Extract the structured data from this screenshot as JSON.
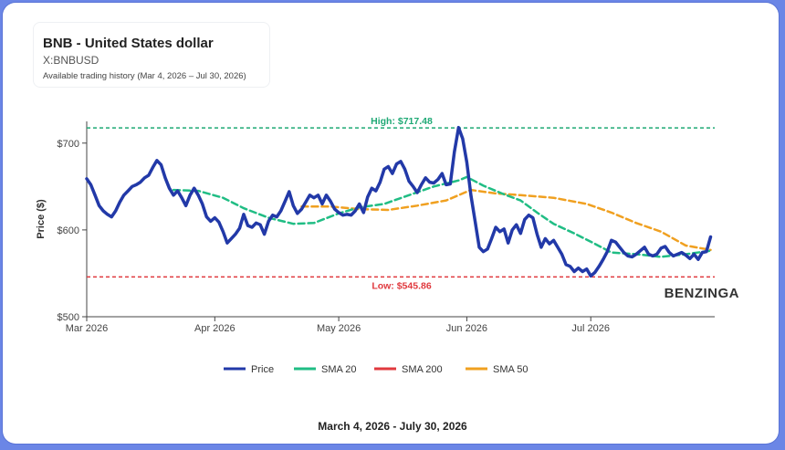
{
  "header": {
    "title": "BNB - United States dollar",
    "symbol": "X:BNBUSD",
    "range_note": "Available trading history (Mar 4, 2026 – Jul 30, 2026)"
  },
  "footer": {
    "date_range": "March 4, 2026 - July 30, 2026"
  },
  "watermark": "BENZINGA",
  "colors": {
    "price": "#2239a8",
    "sma20": "#20bd84",
    "sma200": "#e0393e",
    "sma50": "#f0a020",
    "high": "#1fa975",
    "low": "#e0393e"
  },
  "chart_data": {
    "type": "line",
    "ylabel": "Price ($)",
    "xlabel": "",
    "x_range": [
      "2026-03-01",
      "2026-07-31"
    ],
    "ylim": [
      500,
      725
    ],
    "y_ticks": [
      500,
      600,
      700
    ],
    "y_tick_labels": [
      "$500",
      "$600",
      "$700"
    ],
    "x_ticks": [
      "2026-03-01",
      "2026-04-01",
      "2026-05-01",
      "2026-06-01",
      "2026-07-01"
    ],
    "x_tick_labels": [
      "Mar 2026",
      "Apr 2026",
      "May 2026",
      "Jun 2026",
      "Jul 2026"
    ],
    "annotations": [
      {
        "name": "high",
        "label": "High: $717.48",
        "value": 717.48
      },
      {
        "name": "low",
        "label": "Low: $545.86",
        "value": 545.86
      }
    ],
    "legend_placement": "bottom",
    "legend": [
      "Price",
      "SMA 20",
      "SMA 200",
      "SMA 50"
    ],
    "series": [
      {
        "name": "Price",
        "points": [
          [
            "2026-03-01",
            659
          ],
          [
            "2026-03-02",
            652
          ],
          [
            "2026-03-03",
            640
          ],
          [
            "2026-03-04",
            628
          ],
          [
            "2026-03-05",
            622
          ],
          [
            "2026-03-06",
            618
          ],
          [
            "2026-03-07",
            615
          ],
          [
            "2026-03-08",
            622
          ],
          [
            "2026-03-09",
            632
          ],
          [
            "2026-03-10",
            640
          ],
          [
            "2026-03-11",
            645
          ],
          [
            "2026-03-12",
            650
          ],
          [
            "2026-03-13",
            652
          ],
          [
            "2026-03-14",
            655
          ],
          [
            "2026-03-15",
            660
          ],
          [
            "2026-03-16",
            663
          ],
          [
            "2026-03-17",
            672
          ],
          [
            "2026-03-18",
            680
          ],
          [
            "2026-03-19",
            675
          ],
          [
            "2026-03-20",
            660
          ],
          [
            "2026-03-21",
            648
          ],
          [
            "2026-03-22",
            640
          ],
          [
            "2026-03-23",
            645
          ],
          [
            "2026-03-24",
            637
          ],
          [
            "2026-03-25",
            628
          ],
          [
            "2026-03-26",
            640
          ],
          [
            "2026-03-27",
            648
          ],
          [
            "2026-03-28",
            640
          ],
          [
            "2026-03-29",
            630
          ],
          [
            "2026-03-30",
            615
          ],
          [
            "2026-03-31",
            610
          ],
          [
            "2026-04-01",
            614
          ],
          [
            "2026-04-02",
            609
          ],
          [
            "2026-04-03",
            598
          ],
          [
            "2026-04-04",
            585
          ],
          [
            "2026-04-05",
            590
          ],
          [
            "2026-04-06",
            595
          ],
          [
            "2026-04-07",
            602
          ],
          [
            "2026-04-08",
            618
          ],
          [
            "2026-04-09",
            605
          ],
          [
            "2026-04-10",
            603
          ],
          [
            "2026-04-11",
            608
          ],
          [
            "2026-04-12",
            606
          ],
          [
            "2026-04-13",
            595
          ],
          [
            "2026-04-14",
            610
          ],
          [
            "2026-04-15",
            617
          ],
          [
            "2026-04-16",
            615
          ],
          [
            "2026-04-17",
            622
          ],
          [
            "2026-04-18",
            633
          ],
          [
            "2026-04-19",
            644
          ],
          [
            "2026-04-20",
            628
          ],
          [
            "2026-04-21",
            619
          ],
          [
            "2026-04-22",
            624
          ],
          [
            "2026-04-23",
            632
          ],
          [
            "2026-04-24",
            640
          ],
          [
            "2026-04-25",
            637
          ],
          [
            "2026-04-26",
            640
          ],
          [
            "2026-04-27",
            630
          ],
          [
            "2026-04-28",
            640
          ],
          [
            "2026-04-29",
            633
          ],
          [
            "2026-04-30",
            624
          ],
          [
            "2026-05-01",
            620
          ],
          [
            "2026-05-02",
            617
          ],
          [
            "2026-05-03",
            618
          ],
          [
            "2026-05-04",
            617
          ],
          [
            "2026-05-05",
            622
          ],
          [
            "2026-05-06",
            630
          ],
          [
            "2026-05-07",
            620
          ],
          [
            "2026-05-08",
            638
          ],
          [
            "2026-05-09",
            648
          ],
          [
            "2026-05-10",
            645
          ],
          [
            "2026-05-11",
            655
          ],
          [
            "2026-05-12",
            670
          ],
          [
            "2026-05-13",
            673
          ],
          [
            "2026-05-14",
            665
          ],
          [
            "2026-05-15",
            676
          ],
          [
            "2026-05-16",
            679
          ],
          [
            "2026-05-17",
            670
          ],
          [
            "2026-05-18",
            656
          ],
          [
            "2026-05-19",
            650
          ],
          [
            "2026-05-20",
            643
          ],
          [
            "2026-05-21",
            652
          ],
          [
            "2026-05-22",
            660
          ],
          [
            "2026-05-23",
            655
          ],
          [
            "2026-05-24",
            654
          ],
          [
            "2026-05-25",
            658
          ],
          [
            "2026-05-26",
            665
          ],
          [
            "2026-05-27",
            652
          ],
          [
            "2026-05-28",
            653
          ],
          [
            "2026-05-29",
            690
          ],
          [
            "2026-05-30",
            718
          ],
          [
            "2026-05-31",
            705
          ],
          [
            "2026-06-01",
            678
          ],
          [
            "2026-06-02",
            640
          ],
          [
            "2026-06-03",
            610
          ],
          [
            "2026-06-04",
            580
          ],
          [
            "2026-06-05",
            575
          ],
          [
            "2026-06-06",
            578
          ],
          [
            "2026-06-07",
            590
          ],
          [
            "2026-06-08",
            603
          ],
          [
            "2026-06-09",
            598
          ],
          [
            "2026-06-10",
            601
          ],
          [
            "2026-06-11",
            585
          ],
          [
            "2026-06-12",
            600
          ],
          [
            "2026-06-13",
            606
          ],
          [
            "2026-06-14",
            596
          ],
          [
            "2026-06-15",
            612
          ],
          [
            "2026-06-16",
            617
          ],
          [
            "2026-06-17",
            614
          ],
          [
            "2026-06-18",
            595
          ],
          [
            "2026-06-19",
            580
          ],
          [
            "2026-06-20",
            590
          ],
          [
            "2026-06-21",
            584
          ],
          [
            "2026-06-22",
            588
          ],
          [
            "2026-06-23",
            580
          ],
          [
            "2026-06-24",
            572
          ],
          [
            "2026-06-25",
            560
          ],
          [
            "2026-06-26",
            558
          ],
          [
            "2026-06-27",
            552
          ],
          [
            "2026-06-28",
            556
          ],
          [
            "2026-06-29",
            552
          ],
          [
            "2026-06-30",
            555
          ],
          [
            "2026-07-01",
            547
          ],
          [
            "2026-07-02",
            551
          ],
          [
            "2026-07-03",
            558
          ],
          [
            "2026-07-04",
            566
          ],
          [
            "2026-07-05",
            575
          ],
          [
            "2026-07-06",
            588
          ],
          [
            "2026-07-07",
            586
          ],
          [
            "2026-07-08",
            580
          ],
          [
            "2026-07-09",
            574
          ],
          [
            "2026-07-10",
            570
          ],
          [
            "2026-07-11",
            569
          ],
          [
            "2026-07-12",
            572
          ],
          [
            "2026-07-13",
            576
          ],
          [
            "2026-07-14",
            580
          ],
          [
            "2026-07-15",
            572
          ],
          [
            "2026-07-16",
            570
          ],
          [
            "2026-07-17",
            572
          ],
          [
            "2026-07-18",
            579
          ],
          [
            "2026-07-19",
            581
          ],
          [
            "2026-07-20",
            574
          ],
          [
            "2026-07-21",
            570
          ],
          [
            "2026-07-22",
            572
          ],
          [
            "2026-07-23",
            574
          ],
          [
            "2026-07-24",
            571
          ],
          [
            "2026-07-25",
            567
          ],
          [
            "2026-07-26",
            572
          ],
          [
            "2026-07-27",
            566
          ],
          [
            "2026-07-28",
            574
          ],
          [
            "2026-07-29",
            575
          ],
          [
            "2026-07-30",
            592
          ]
        ]
      },
      {
        "name": "SMA 20",
        "points": [
          [
            "2026-03-22",
            646
          ],
          [
            "2026-03-28",
            645
          ],
          [
            "2026-04-03",
            637
          ],
          [
            "2026-04-08",
            625
          ],
          [
            "2026-04-14",
            614
          ],
          [
            "2026-04-20",
            607
          ],
          [
            "2026-04-25",
            608
          ],
          [
            "2026-05-01",
            619
          ],
          [
            "2026-05-06",
            626
          ],
          [
            "2026-05-12",
            630
          ],
          [
            "2026-05-18",
            640
          ],
          [
            "2026-05-24",
            650
          ],
          [
            "2026-05-30",
            657
          ],
          [
            "2026-06-01",
            661
          ],
          [
            "2026-06-05",
            651
          ],
          [
            "2026-06-10",
            641
          ],
          [
            "2026-06-14",
            634
          ],
          [
            "2026-06-18",
            620
          ],
          [
            "2026-06-22",
            607
          ],
          [
            "2026-06-27",
            596
          ],
          [
            "2026-07-02",
            584
          ],
          [
            "2026-07-06",
            574
          ],
          [
            "2026-07-12",
            572
          ],
          [
            "2026-07-18",
            569
          ],
          [
            "2026-07-24",
            572
          ],
          [
            "2026-07-30",
            576
          ]
        ]
      },
      {
        "name": "SMA 50",
        "points": [
          [
            "2026-04-22",
            627
          ],
          [
            "2026-04-29",
            627
          ],
          [
            "2026-05-06",
            624
          ],
          [
            "2026-05-13",
            623
          ],
          [
            "2026-05-20",
            628
          ],
          [
            "2026-05-27",
            634
          ],
          [
            "2026-06-02",
            646
          ],
          [
            "2026-06-08",
            642
          ],
          [
            "2026-06-14",
            640
          ],
          [
            "2026-06-22",
            637
          ],
          [
            "2026-06-30",
            630
          ],
          [
            "2026-07-06",
            620
          ],
          [
            "2026-07-12",
            608
          ],
          [
            "2026-07-18",
            598
          ],
          [
            "2026-07-24",
            582
          ],
          [
            "2026-07-30",
            577
          ]
        ]
      }
    ]
  }
}
